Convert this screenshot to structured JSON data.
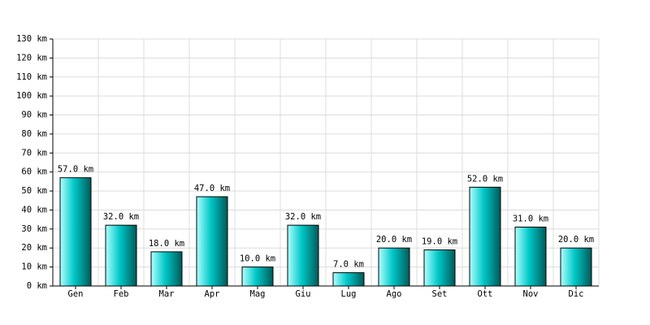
{
  "chart_data": {
    "type": "bar",
    "categories": [
      "Gen",
      "Feb",
      "Mar",
      "Apr",
      "Mag",
      "Giu",
      "Lug",
      "Ago",
      "Set",
      "Ott",
      "Nov",
      "Dic"
    ],
    "values": [
      57,
      32,
      18,
      47,
      10,
      32,
      7,
      20,
      19,
      52,
      31,
      20
    ],
    "value_labels": [
      "57.0 km",
      "32.0 km",
      "18.0 km",
      "47.0 km",
      "10.0 km",
      "32.0 km",
      "7.0 km",
      "20.0 km",
      "19.0 km",
      "52.0 km",
      "31.0 km",
      "20.0 km"
    ],
    "color": "#00c8c8",
    "ylim": [
      0,
      130
    ],
    "yticks": [
      {
        "value": 0,
        "label": "0 km"
      },
      {
        "value": 10,
        "label": "10 km"
      },
      {
        "value": 20,
        "label": "20 km"
      },
      {
        "value": 30,
        "label": "30 km"
      },
      {
        "value": 40,
        "label": "40 km"
      },
      {
        "value": 50,
        "label": "50 km"
      },
      {
        "value": 60,
        "label": "60 km"
      },
      {
        "value": 70,
        "label": "70 km"
      },
      {
        "value": 80,
        "label": "80 km"
      },
      {
        "value": 90,
        "label": "90 km"
      },
      {
        "value": 100,
        "label": "100 km"
      },
      {
        "value": 110,
        "label": "110 km"
      },
      {
        "value": 120,
        "label": "120 km"
      },
      {
        "value": 130,
        "label": "130 km"
      }
    ],
    "grid": true
  }
}
